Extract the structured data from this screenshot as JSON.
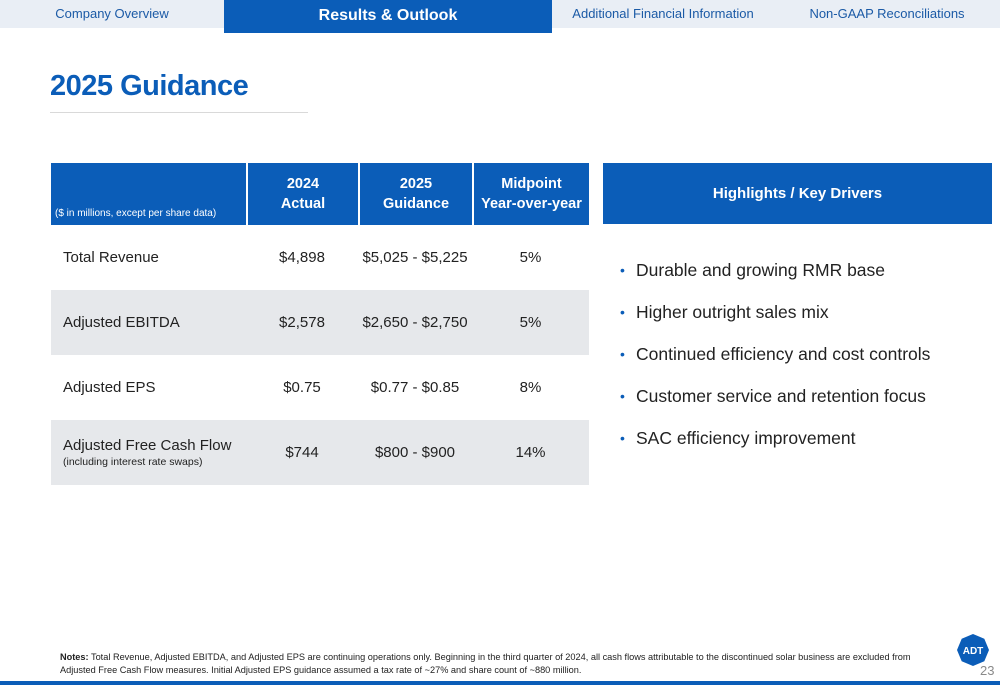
{
  "nav": {
    "tabs": [
      {
        "label": "Company Overview"
      },
      {
        "label": "Results & Outlook"
      },
      {
        "label": "Additional Financial Information"
      },
      {
        "label": "Non-GAAP Reconciliations"
      }
    ]
  },
  "page": {
    "title": "2025 Guidance",
    "page_number": "23"
  },
  "table": {
    "unit_note": "($ in millions, except per share data)",
    "headers": [
      {
        "line1": "2024",
        "line2": "Actual"
      },
      {
        "line1": "2025",
        "line2": "Guidance"
      },
      {
        "line1": "Midpoint",
        "line2": "Year-over-year"
      }
    ],
    "rows": [
      {
        "metric": "Total Revenue",
        "sub": "",
        "actual": "$4,898",
        "guidance": "$5,025 - $5,225",
        "yoy": "5%"
      },
      {
        "metric": "Adjusted EBITDA",
        "sub": "",
        "actual": "$2,578",
        "guidance": "$2,650 - $2,750",
        "yoy": "5%"
      },
      {
        "metric": "Adjusted EPS",
        "sub": "",
        "actual": "$0.75",
        "guidance": "$0.77 - $0.85",
        "yoy": "8%"
      },
      {
        "metric": "Adjusted Free Cash Flow",
        "sub": "(including interest rate swaps)",
        "actual": "$744",
        "guidance": "$800 - $900",
        "yoy": "14%"
      }
    ]
  },
  "highlights": {
    "title": "Highlights / Key Drivers",
    "items": [
      "Durable and growing RMR base",
      "Higher outright sales mix",
      "Continued efficiency and cost controls",
      "Customer service and retention focus",
      "SAC efficiency improvement"
    ]
  },
  "notes": {
    "label": "Notes:",
    "text": "Total Revenue, Adjusted EBITDA, and Adjusted EPS are continuing operations only. Beginning in the third quarter of 2024, all cash flows attributable to the discontinued solar business are excluded from Adjusted Free Cash Flow measures.  Initial Adjusted EPS guidance assumed a tax rate of ~27% and share count of ~880 million."
  },
  "logo": {
    "text": "ADT"
  },
  "colors": {
    "brand_blue": "#0b5db8",
    "row_shade": "#e6e8eb",
    "tab_bg": "#e9eef5"
  }
}
